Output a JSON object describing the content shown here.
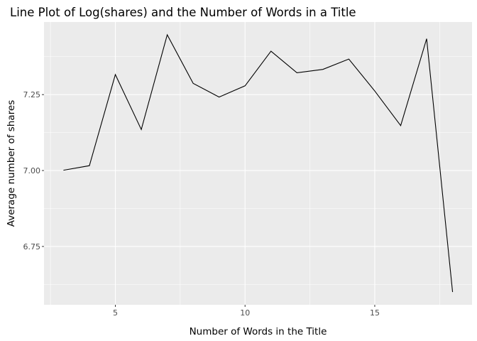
{
  "chart_data": {
    "type": "line",
    "title": "Line Plot of Log(shares) and the Number of Words in a Title",
    "xlabel": "Number of Words in the Title",
    "ylabel": "Average number of shares",
    "x": [
      3,
      4,
      5,
      6,
      7,
      8,
      9,
      10,
      11,
      12,
      13,
      14,
      15,
      16,
      17,
      18
    ],
    "series": [
      {
        "values": [
          7.001,
          7.016,
          7.316,
          7.135,
          7.447,
          7.287,
          7.242,
          7.279,
          7.393,
          7.322,
          7.333,
          7.367,
          7.262,
          7.148,
          7.434,
          6.6
        ]
      }
    ],
    "xlim": [
      2.25,
      18.75
    ],
    "ylim": [
      6.558,
      7.489
    ],
    "x_ticks": [
      5,
      10,
      15
    ],
    "x_tick_labels": [
      "5",
      "10",
      "15"
    ],
    "y_ticks": [
      6.75,
      7.0,
      7.25
    ],
    "y_tick_labels": [
      "6.75",
      "7.00",
      "7.25"
    ],
    "grid": true,
    "legend": "none",
    "colors": {
      "panel_background": "#ebebeb",
      "grid_major": "#ffffff",
      "line": "#000000",
      "tick_label": "#4d4d4d"
    }
  }
}
